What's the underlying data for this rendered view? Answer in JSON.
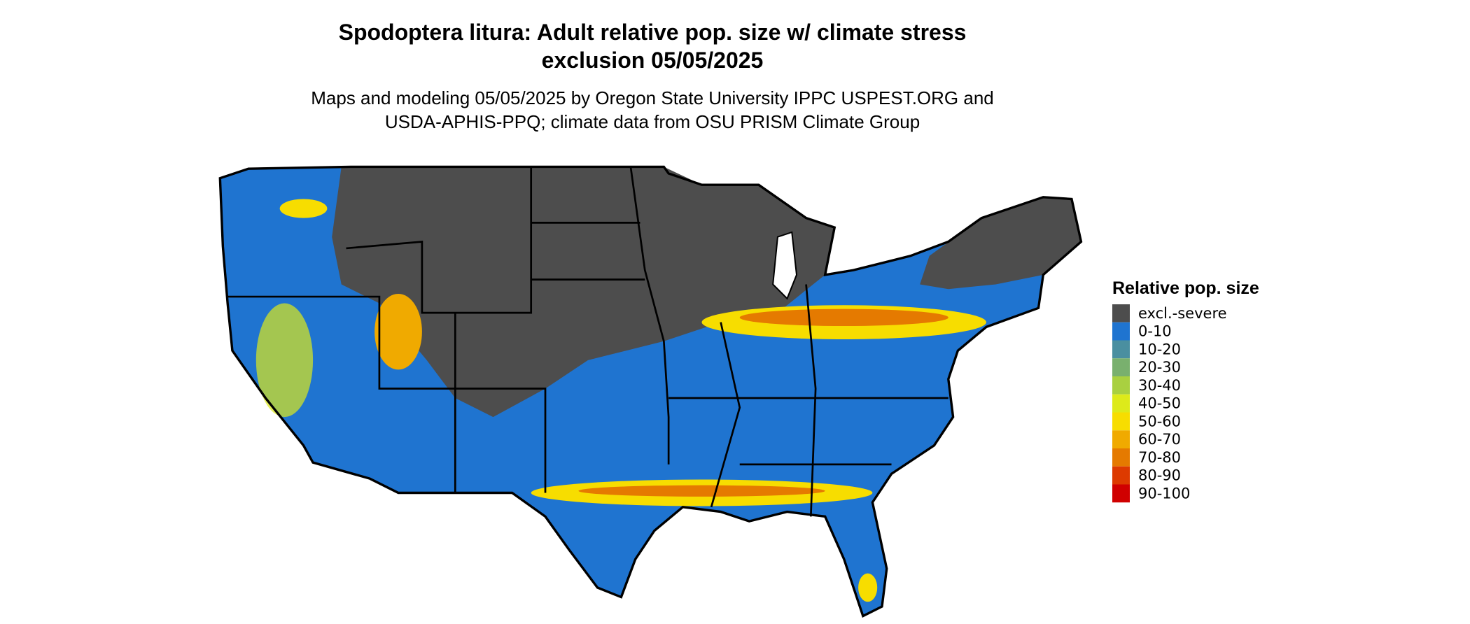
{
  "title": [
    "Spodoptera litura: Adult relative pop. size w/ climate stress",
    "exclusion 05/05/2025"
  ],
  "subtitle": [
    "Maps and modeling 05/05/2025 by Oregon State University IPPC USPEST.ORG and",
    "USDA-APHIS-PPQ; climate data from OSU PRISM Climate Group"
  ],
  "legend": {
    "title": "Relative pop. size",
    "items": [
      {
        "label": "excl.-severe",
        "color": "#4d4d4d"
      },
      {
        "label": "0-10",
        "color": "#1f74d0"
      },
      {
        "label": "10-20",
        "color": "#4a8fa0"
      },
      {
        "label": "20-30",
        "color": "#79b06e"
      },
      {
        "label": "30-40",
        "color": "#a9d040"
      },
      {
        "label": "40-50",
        "color": "#ddea1a"
      },
      {
        "label": "50-60",
        "color": "#f7dd00"
      },
      {
        "label": "60-70",
        "color": "#f0aa00"
      },
      {
        "label": "70-80",
        "color": "#e57a00"
      },
      {
        "label": "80-90",
        "color": "#dd3a00"
      },
      {
        "label": "90-100",
        "color": "#d00000"
      }
    ]
  }
}
